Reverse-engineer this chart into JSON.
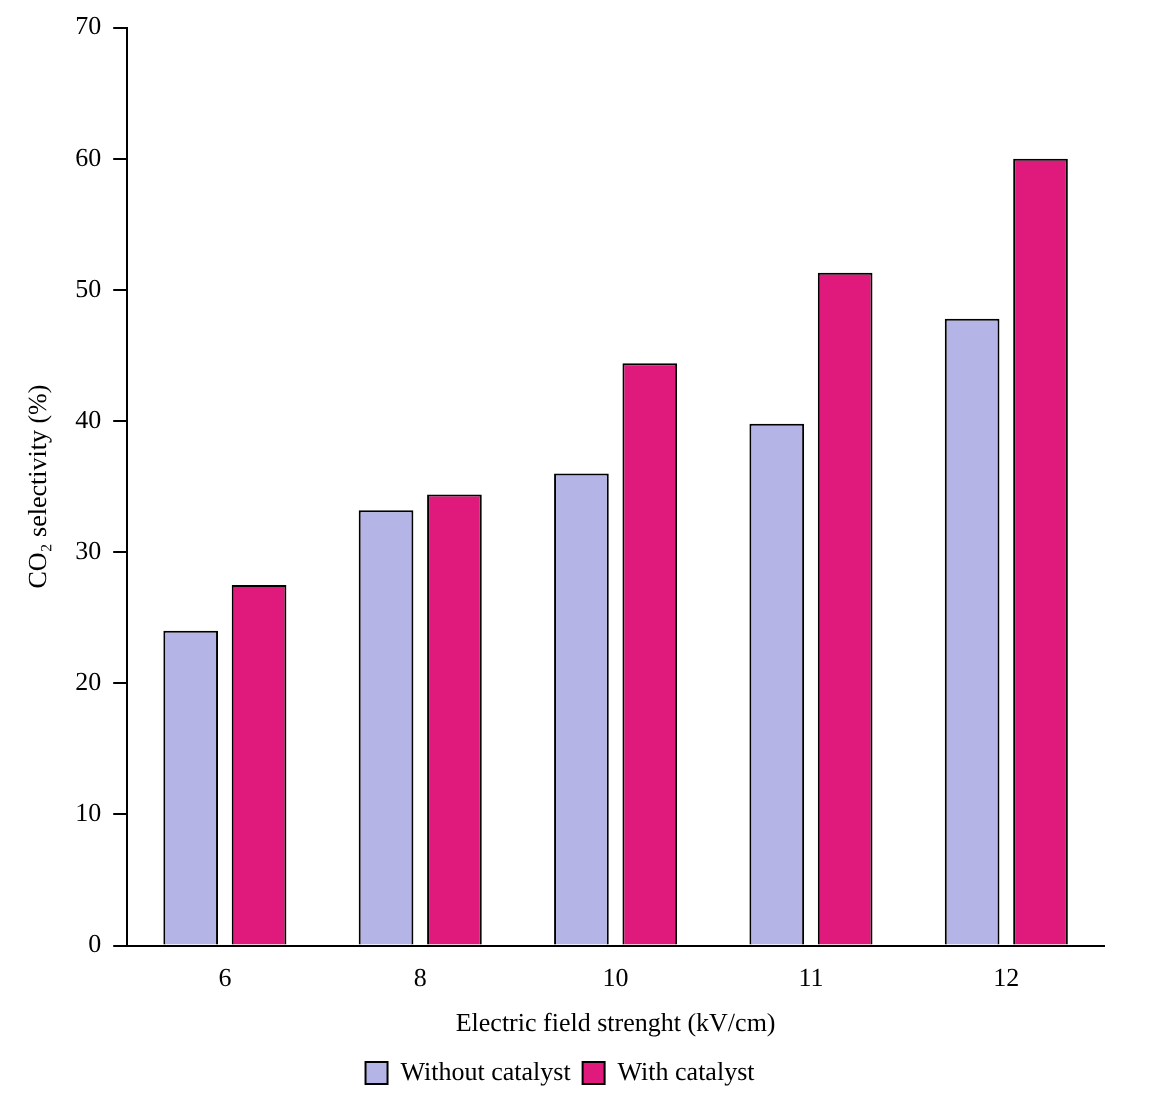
{
  "chart_data": {
    "type": "bar",
    "xlabel": "Electric field strenght (kV/cm)",
    "ylabel": "CO₂ selectivity (%)",
    "categories": [
      "6",
      "8",
      "10",
      "11",
      "12"
    ],
    "series": [
      {
        "name": "Without catalyst",
        "color": "#b4b4e6",
        "values": [
          24.0,
          33.2,
          36.0,
          39.8,
          47.8
        ]
      },
      {
        "name": "With catalyst",
        "color": "#e0197c",
        "values": [
          27.5,
          34.4,
          44.4,
          51.3,
          60.0
        ]
      }
    ],
    "ylim": [
      0,
      70
    ],
    "yticks": [
      0,
      10,
      20,
      30,
      40,
      50,
      60,
      70
    ],
    "grid": false,
    "legend": "bottom"
  }
}
